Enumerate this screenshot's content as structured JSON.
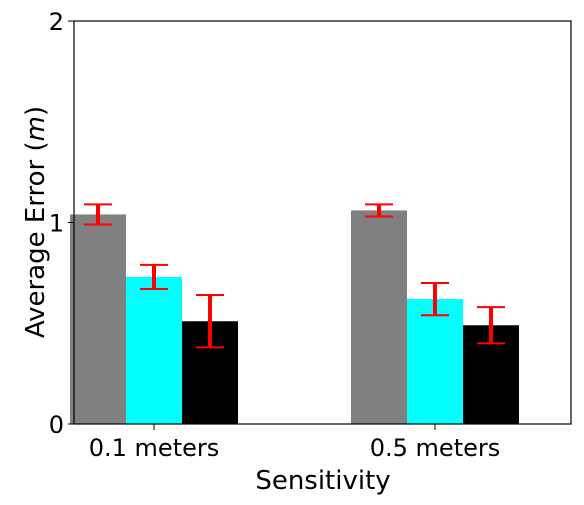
{
  "chart_data": {
    "type": "bar",
    "title": "",
    "xlabel": "Sensitivity",
    "ylabel": "Average Error (m)",
    "ylabel_parts": {
      "prefix": "Average Error (",
      "unit": "m",
      "suffix": ")"
    },
    "categories": [
      "0.1 meters",
      "0.5 meters"
    ],
    "ylim": [
      0,
      2
    ],
    "yticks": [
      "0",
      "1",
      "2"
    ],
    "grid": false,
    "legend": false,
    "error_bar_color": "#ff0000",
    "series": [
      {
        "color": "#808080",
        "values": [
          1.04,
          1.06
        ],
        "err_low": [
          0.05,
          0.03
        ],
        "err_high": [
          0.05,
          0.03
        ]
      },
      {
        "color": "#00ffff",
        "values": [
          0.73,
          0.62
        ],
        "err_low": [
          0.06,
          0.08
        ],
        "err_high": [
          0.06,
          0.08
        ]
      },
      {
        "color": "#000000",
        "values": [
          0.51,
          0.49
        ],
        "err_low": [
          0.13,
          0.09
        ],
        "err_high": [
          0.13,
          0.09
        ]
      }
    ]
  }
}
